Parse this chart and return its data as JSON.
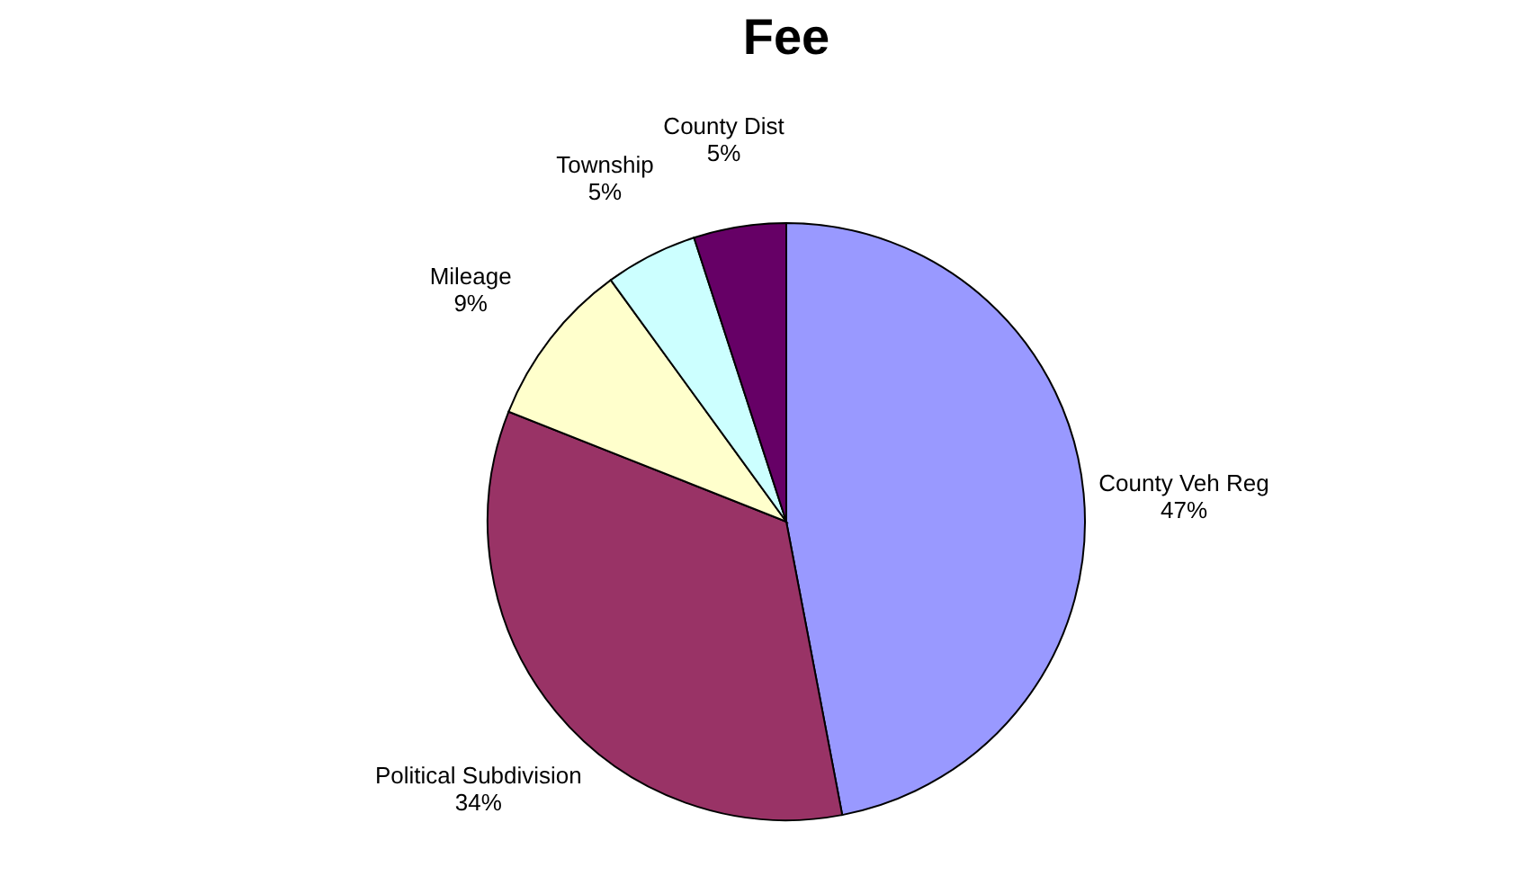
{
  "chart_data": {
    "type": "pie",
    "title": "Fee",
    "categories": [
      "County Veh Reg",
      "Political Subdivision",
      "Mileage",
      "Township",
      "County Dist"
    ],
    "values": [
      47,
      34,
      9,
      5,
      5
    ],
    "value_labels": [
      "47%",
      "34%",
      "9%",
      "5%",
      "5%"
    ],
    "colors": [
      "#9999ff",
      "#993366",
      "#ffffcc",
      "#ccffff",
      "#660066"
    ]
  }
}
